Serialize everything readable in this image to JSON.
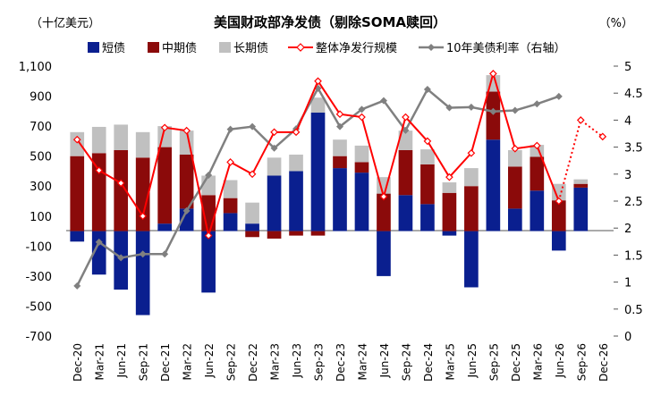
{
  "chart_data": {
    "type": "bar",
    "title": "美国财政部净发债（剔除SOMA赎回）",
    "left_unit": "（十亿美元）",
    "right_unit": "（%）",
    "categories": [
      "Dec-20",
      "Mar-21",
      "Jun-21",
      "Sep-21",
      "Dec-21",
      "Mar-22",
      "Jun-22",
      "Sep-22",
      "Dec-22",
      "Mar-23",
      "Jun-23",
      "Sep-23",
      "Dec-23",
      "Mar-24",
      "Jun-24",
      "Sep-24",
      "Dec-24",
      "Mar-25",
      "Jun-25",
      "Sep-25",
      "Dec-25",
      "Mar-26",
      "Jun-26",
      "Sep-26",
      "Dec-26"
    ],
    "series": [
      {
        "name": "短债",
        "type": "stacked-bar",
        "color": "#0a1f8f",
        "values": [
          -70,
          -290,
          -390,
          -560,
          50,
          150,
          -410,
          120,
          50,
          370,
          400,
          790,
          420,
          390,
          -300,
          240,
          180,
          -30,
          -375,
          610,
          150,
          270,
          -130,
          290,
          null
        ]
      },
      {
        "name": "中期债",
        "type": "stacked-bar",
        "color": "#8b0a0a",
        "values": [
          500,
          520,
          540,
          490,
          510,
          360,
          240,
          100,
          -40,
          -50,
          -30,
          -30,
          80,
          70,
          250,
          300,
          265,
          255,
          300,
          320,
          280,
          225,
          205,
          25,
          null
        ]
      },
      {
        "name": "长期债",
        "type": "stacked-bar",
        "color": "#c0c0c0",
        "values": [
          160,
          175,
          170,
          170,
          140,
          160,
          130,
          120,
          140,
          120,
          110,
          100,
          110,
          110,
          110,
          130,
          100,
          70,
          120,
          110,
          110,
          80,
          110,
          30,
          null
        ]
      },
      {
        "name": "整体净发行规模",
        "type": "line",
        "axis": "left",
        "color": "#ff0000",
        "values": [
          610,
          405,
          320,
          100,
          690,
          670,
          -30,
          460,
          380,
          660,
          660,
          1000,
          780,
          760,
          230,
          760,
          600,
          360,
          520,
          1050,
          550,
          570,
          200,
          740,
          630
        ],
        "projected_from": "Jun-26"
      },
      {
        "name": "10年美债利率（右轴）",
        "type": "line",
        "axis": "right",
        "color": "#808080",
        "values": [
          0.93,
          1.74,
          1.45,
          1.52,
          1.52,
          2.32,
          2.98,
          3.83,
          3.88,
          3.48,
          3.84,
          4.59,
          3.88,
          4.2,
          4.36,
          3.81,
          4.57,
          4.23,
          4.24,
          4.16,
          4.18,
          4.3,
          4.44,
          null,
          null
        ]
      }
    ],
    "ylim": [
      -700,
      1100
    ],
    "yticks": [
      "1,100",
      "900",
      "700",
      "500",
      "300",
      "100",
      "-100",
      "-300",
      "-500",
      "-700"
    ],
    "y2lim": [
      0,
      5
    ],
    "y2ticks": [
      "5",
      "4.5",
      "4",
      "3.5",
      "3",
      "2.5",
      "2",
      "1.5",
      "1",
      "0.5",
      "0"
    ],
    "legend_position": "top",
    "grid": false
  }
}
